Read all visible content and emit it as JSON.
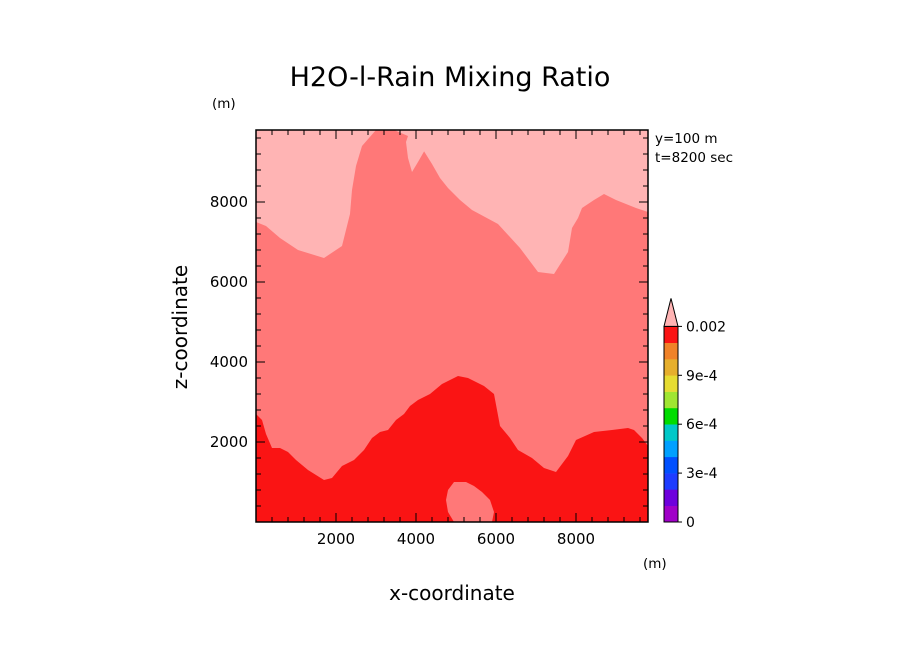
{
  "chart_data": {
    "type": "heatmap",
    "title": "H2O-l-Rain Mixing Ratio",
    "xlabel": "x-coordinate",
    "ylabel": "z-coordinate",
    "x_unit": "(m)",
    "y_unit": "(m)",
    "annotations": [
      "y=100 m",
      "t=8200 sec"
    ],
    "xlim": [
      0,
      9800
    ],
    "ylim": [
      0,
      9800
    ],
    "x_ticks": [
      {
        "value": 2000,
        "label": "2000"
      },
      {
        "value": 4000,
        "label": "4000"
      },
      {
        "value": 6000,
        "label": "6000"
      },
      {
        "value": 8000,
        "label": "8000"
      }
    ],
    "y_ticks": [
      {
        "value": 2000,
        "label": "2000"
      },
      {
        "value": 4000,
        "label": "4000"
      },
      {
        "value": 6000,
        "label": "6000"
      },
      {
        "value": 8000,
        "label": "8000"
      }
    ],
    "colorbar": {
      "levels": [
        0,
        0.0001,
        0.0002,
        0.0003,
        0.0004,
        0.0005,
        0.0006,
        0.0007,
        0.0008,
        0.0009,
        0.001,
        0.0015,
        0.002
      ],
      "colors": [
        "#a000c8",
        "#6e00dc",
        "#1e3cff",
        "#0050ff",
        "#00a0ff",
        "#00c8c8",
        "#00dc00",
        "#a0e632",
        "#e6dc32",
        "#e6af2d",
        "#f08228",
        "#fa1414",
        "#ff7878",
        "#ffb4b4"
      ],
      "labels": [
        {
          "value": 0,
          "label": "0"
        },
        {
          "value": 0.0003,
          "label": "3e-4"
        },
        {
          "value": 0.0006,
          "label": "6e-4"
        },
        {
          "value": 0.0009,
          "label": "9e-4"
        },
        {
          "value": 0.002,
          "label": "0.002"
        }
      ]
    },
    "regions": [
      {
        "name": "mixing ratio 0.0015 to 0.002",
        "color": "#ff7878",
        "points": [
          [
            0,
            0
          ],
          [
            9800,
            0
          ],
          [
            9800,
            7750
          ],
          [
            9500,
            7850
          ],
          [
            9000,
            8050
          ],
          [
            8700,
            8200
          ],
          [
            8450,
            8050
          ],
          [
            8150,
            7850
          ],
          [
            8050,
            7600
          ],
          [
            7900,
            7350
          ],
          [
            7800,
            6750
          ],
          [
            7450,
            6200
          ],
          [
            7050,
            6250
          ],
          [
            6600,
            6850
          ],
          [
            6050,
            7450
          ],
          [
            5400,
            7800
          ],
          [
            5100,
            8050
          ],
          [
            4800,
            8350
          ],
          [
            4600,
            8600
          ],
          [
            4400,
            8950
          ],
          [
            4150,
            9350
          ],
          [
            3800,
            9650
          ],
          [
            3450,
            9800
          ],
          [
            3000,
            9800
          ],
          [
            2650,
            9400
          ],
          [
            2500,
            8900
          ],
          [
            2400,
            8300
          ],
          [
            2350,
            7700
          ],
          [
            2150,
            6900
          ],
          [
            1700,
            6600
          ],
          [
            1050,
            6800
          ],
          [
            600,
            7100
          ],
          [
            250,
            7400
          ],
          [
            0,
            7500
          ]
        ]
      },
      {
        "name": "mixing ratio 0.001 to 0.0015",
        "color": "#fa1414",
        "points": [
          [
            0,
            0
          ],
          [
            9800,
            0
          ],
          [
            9800,
            1900
          ],
          [
            9650,
            2100
          ],
          [
            9450,
            2300
          ],
          [
            9300,
            2350
          ],
          [
            8900,
            2300
          ],
          [
            8450,
            2250
          ],
          [
            8000,
            2050
          ],
          [
            7800,
            1650
          ],
          [
            7500,
            1250
          ],
          [
            7200,
            1350
          ],
          [
            6900,
            1600
          ],
          [
            6550,
            1800
          ],
          [
            6350,
            2100
          ],
          [
            6100,
            2400
          ],
          [
            5950,
            3200
          ],
          [
            5700,
            3400
          ],
          [
            5300,
            3600
          ],
          [
            5050,
            3650
          ],
          [
            4650,
            3450
          ],
          [
            4350,
            3200
          ],
          [
            4050,
            3050
          ],
          [
            3850,
            2900
          ],
          [
            3700,
            2700
          ],
          [
            3500,
            2550
          ],
          [
            3300,
            2300
          ],
          [
            3100,
            2250
          ],
          [
            2900,
            2100
          ],
          [
            2700,
            1800
          ],
          [
            2450,
            1550
          ],
          [
            2150,
            1400
          ],
          [
            1900,
            1100
          ],
          [
            1700,
            1050
          ],
          [
            1300,
            1300
          ],
          [
            1000,
            1550
          ],
          [
            800,
            1750
          ],
          [
            600,
            1850
          ],
          [
            400,
            1850
          ],
          [
            250,
            2200
          ],
          [
            150,
            2550
          ],
          [
            0,
            2700
          ]
        ]
      },
      {
        "name": "mixing ratio 0.0015 to 0.002 pocket",
        "color": "#ff7878",
        "points": [
          [
            4950,
            1000
          ],
          [
            5250,
            1000
          ],
          [
            5450,
            900
          ],
          [
            5650,
            750
          ],
          [
            5850,
            550
          ],
          [
            5950,
            250
          ],
          [
            5900,
            0
          ],
          [
            4950,
            0
          ],
          [
            4800,
            250
          ],
          [
            4750,
            550
          ],
          [
            4800,
            800
          ]
        ]
      },
      {
        "name": "mixing ratio above 0.002 spire",
        "color": "#ffb4b4",
        "points": [
          [
            3850,
            9800
          ],
          [
            4200,
            9800
          ],
          [
            4350,
            9700
          ],
          [
            4250,
            9350
          ],
          [
            4050,
            9000
          ],
          [
            3900,
            8750
          ],
          [
            3800,
            9100
          ],
          [
            3750,
            9500
          ]
        ]
      }
    ]
  }
}
